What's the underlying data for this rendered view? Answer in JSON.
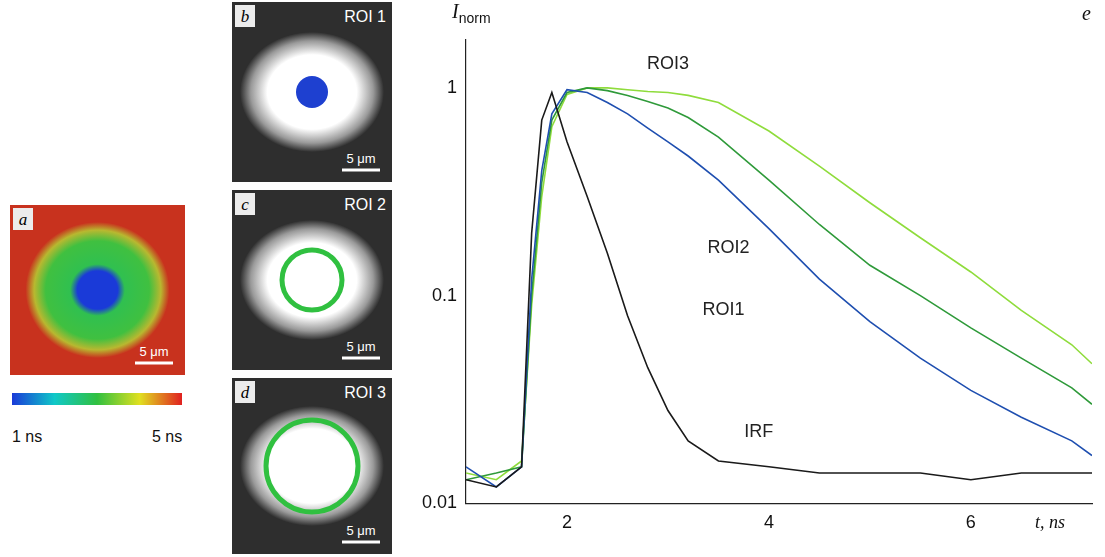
{
  "chart_data": {
    "type": "line",
    "y_label": {
      "main": "I",
      "sub": "norm"
    },
    "x_label": "t, ns",
    "panel": "e",
    "log": "y",
    "grid": false,
    "x": [
      1.0,
      1.3,
      1.55,
      1.65,
      1.75,
      1.85,
      2.0,
      2.2,
      2.4,
      2.6,
      2.8,
      3.0,
      3.2,
      3.5,
      4.0,
      4.5,
      5.0,
      5.5,
      6.0,
      6.5,
      7.0,
      7.2
    ],
    "series": [
      {
        "name": "IRF",
        "color": "#1a1a1a",
        "values": [
          0.013,
          0.012,
          0.015,
          0.2,
          0.7,
          0.95,
          0.55,
          0.3,
          0.16,
          0.08,
          0.045,
          0.028,
          0.02,
          0.016,
          0.015,
          0.014,
          0.014,
          0.014,
          0.013,
          0.014,
          0.014,
          0.014
        ]
      },
      {
        "name": "ROI1",
        "color": "#1f4fb0",
        "values": [
          0.015,
          0.012,
          0.015,
          0.12,
          0.4,
          0.75,
          0.98,
          0.95,
          0.85,
          0.75,
          0.64,
          0.55,
          0.47,
          0.36,
          0.21,
          0.12,
          0.075,
          0.05,
          0.035,
          0.026,
          0.02,
          0.017
        ]
      },
      {
        "name": "ROI2",
        "color": "#2f9a3a",
        "values": [
          0.013,
          0.014,
          0.015,
          0.1,
          0.35,
          0.7,
          0.95,
          1.0,
          0.97,
          0.92,
          0.86,
          0.8,
          0.72,
          0.58,
          0.36,
          0.22,
          0.14,
          0.1,
          0.07,
          0.05,
          0.036,
          0.03
        ]
      },
      {
        "name": "ROI3",
        "color": "#8fdc3c",
        "values": [
          0.014,
          0.013,
          0.016,
          0.09,
          0.3,
          0.65,
          0.93,
          1.0,
          1.0,
          0.98,
          0.96,
          0.95,
          0.92,
          0.85,
          0.62,
          0.42,
          0.28,
          0.19,
          0.13,
          0.085,
          0.058,
          0.047
        ]
      }
    ],
    "annotations": [
      {
        "text": "ROI3",
        "x": 3.0,
        "y": 1.3
      },
      {
        "text": "ROI2",
        "x": 3.6,
        "y": 0.17
      },
      {
        "text": "ROI1",
        "x": 3.55,
        "y": 0.085
      },
      {
        "text": "IRF",
        "x": 3.9,
        "y": 0.022
      }
    ],
    "xlim": [
      1,
      7.2
    ],
    "xticks": [
      2,
      4,
      6
    ],
    "ylim": [
      0.01,
      1.7
    ],
    "yticks": [
      0.01,
      0.1,
      1
    ]
  },
  "images": [
    {
      "letter": "a",
      "scale_bar": "5 μm"
    },
    {
      "letter": "b",
      "title": "ROI 1",
      "scale_bar": "5 μm"
    },
    {
      "letter": "c",
      "title": "ROI 2",
      "scale_bar": "5 μm"
    },
    {
      "letter": "d",
      "title": "ROI 3",
      "scale_bar": "5 μm"
    }
  ],
  "colorbar": {
    "range": [
      1,
      5
    ],
    "ticks": [
      {
        "value": 1,
        "label": "1 ns"
      },
      {
        "value": 5,
        "label": "5 ns"
      }
    ],
    "colors": [
      "#1a3ad8",
      "#10c8c8",
      "#30c040",
      "#e0e020",
      "#e02020"
    ]
  }
}
